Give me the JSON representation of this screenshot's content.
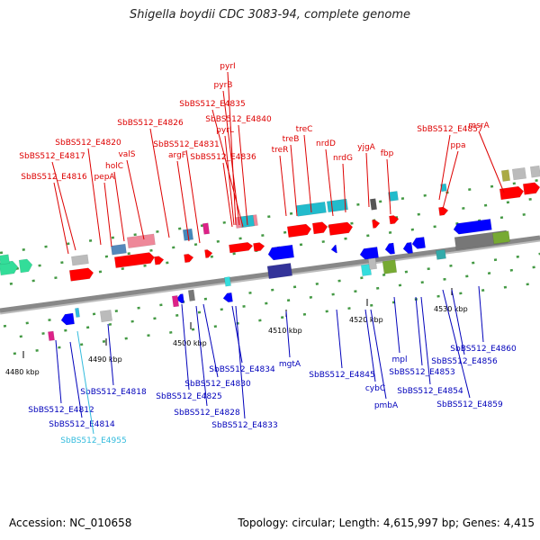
{
  "title": "Shigella boydii CDC 3083-94, complete genome",
  "footer": {
    "accession": "Accession: NC_010658",
    "stats": "Topology: circular; Length: 4,615,997 bp; Genes: 4,415"
  },
  "colors": {
    "forward_label": "#dd0000",
    "reverse_label": "#0000bb",
    "pseudo_label": "#33bbdd",
    "backbone": "#888888"
  },
  "tick_labels": [
    "4480 kbp",
    "4490 kbp",
    "4500 kbp",
    "4510 kbp",
    "4520 kbp",
    "4530 kbp"
  ],
  "forward_labels": [
    "pyrI",
    "pyrB",
    "SbBS512_E4835",
    "SbBS512_E4840",
    "SbBS512_E4826",
    "pyrL",
    "treC",
    "SbBS512_E4820",
    "SbBS512_E4831",
    "treB",
    "nrdD",
    "SbBS512_E4857",
    "msrA",
    "SbBS512_E4817",
    "valS",
    "argF",
    "SbBS512_E4836",
    "treR",
    "yjgA",
    "ppa",
    "holC",
    "nrdG",
    "fbp",
    "SbBS512_E4816",
    "pepA"
  ],
  "reverse_labels": [
    "SbBS512_E4860",
    "SbBS512_E4856",
    "mpl",
    "SbBS512_E4834",
    "mgtA",
    "SbBS512_E4845",
    "SbBS512_E4853",
    "SbBS512_E4830",
    "SbBS512_E4818",
    "SbBS512_E4854",
    "cybC",
    "SbBS512_E4825",
    "SbBS512_E4812",
    "pmbA",
    "SbBS512_E4859",
    "SbBS512_E4828",
    "SbBS512_E4814",
    "SbBS512_E4833"
  ],
  "pseudo_labels": [
    "SbBS512_E4955"
  ]
}
